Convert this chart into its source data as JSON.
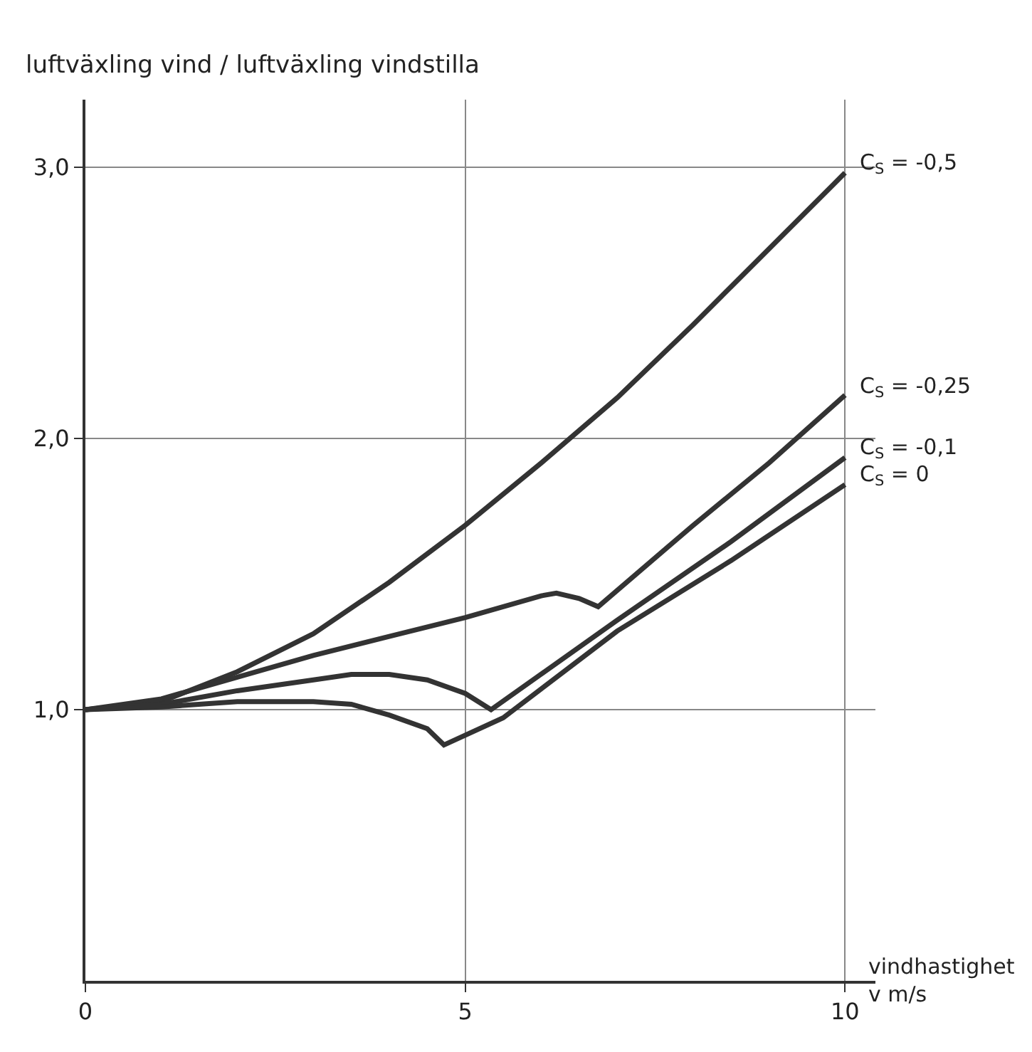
{
  "chart_data": {
    "type": "line",
    "ylabel": "luftväxling vind / luftväxling vindstilla",
    "xlabel": "vindhastighet\nv m/s",
    "xlim": [
      0,
      10.4
    ],
    "ylim": [
      0,
      3.25
    ],
    "xticks": [
      0,
      5,
      10
    ],
    "yticks": [
      {
        "value": 1,
        "label": "1,0"
      },
      {
        "value": 2,
        "label": "2,0"
      },
      {
        "value": 3,
        "label": "3,0"
      }
    ],
    "grid": true,
    "legend": false,
    "marker": "none",
    "line_style": "solid",
    "series": [
      {
        "name": "C$_{S}$ = -0,5",
        "color": "#333333",
        "x": [
          0,
          1,
          2,
          3,
          4,
          5,
          6,
          7,
          8,
          9,
          10
        ],
        "values": [
          1,
          1.03,
          1.14,
          1.28,
          1.47,
          1.68,
          1.91,
          2.15,
          2.42,
          2.7,
          2.98
        ]
      },
      {
        "name": "C$_{S}$ = -0,25",
        "color": "#333333",
        "x": [
          0,
          1,
          2,
          3,
          4,
          5,
          6,
          6.2,
          6.5,
          6.75,
          8,
          9,
          10
        ],
        "values": [
          1,
          1.04,
          1.12,
          1.2,
          1.27,
          1.34,
          1.42,
          1.43,
          1.41,
          1.38,
          1.68,
          1.91,
          2.16
        ]
      },
      {
        "name": "C$_{S}$ = -0,1",
        "color": "#333333",
        "x": [
          0,
          1,
          2,
          3,
          3.5,
          4,
          4.5,
          5,
          5.34,
          7,
          8.5,
          10
        ],
        "values": [
          1,
          1.02,
          1.07,
          1.11,
          1.13,
          1.13,
          1.11,
          1.06,
          1.0,
          1.33,
          1.62,
          1.93
        ]
      },
      {
        "name": "C$_{S}$ = 0",
        "color": "#333333",
        "x": [
          0,
          1,
          2,
          3,
          3.5,
          4,
          4.5,
          4.72,
          5.5,
          7,
          8.5,
          10
        ],
        "values": [
          1,
          1.01,
          1.03,
          1.03,
          1.02,
          0.98,
          0.93,
          0.87,
          0.97,
          1.29,
          1.55,
          1.83
        ]
      }
    ]
  }
}
